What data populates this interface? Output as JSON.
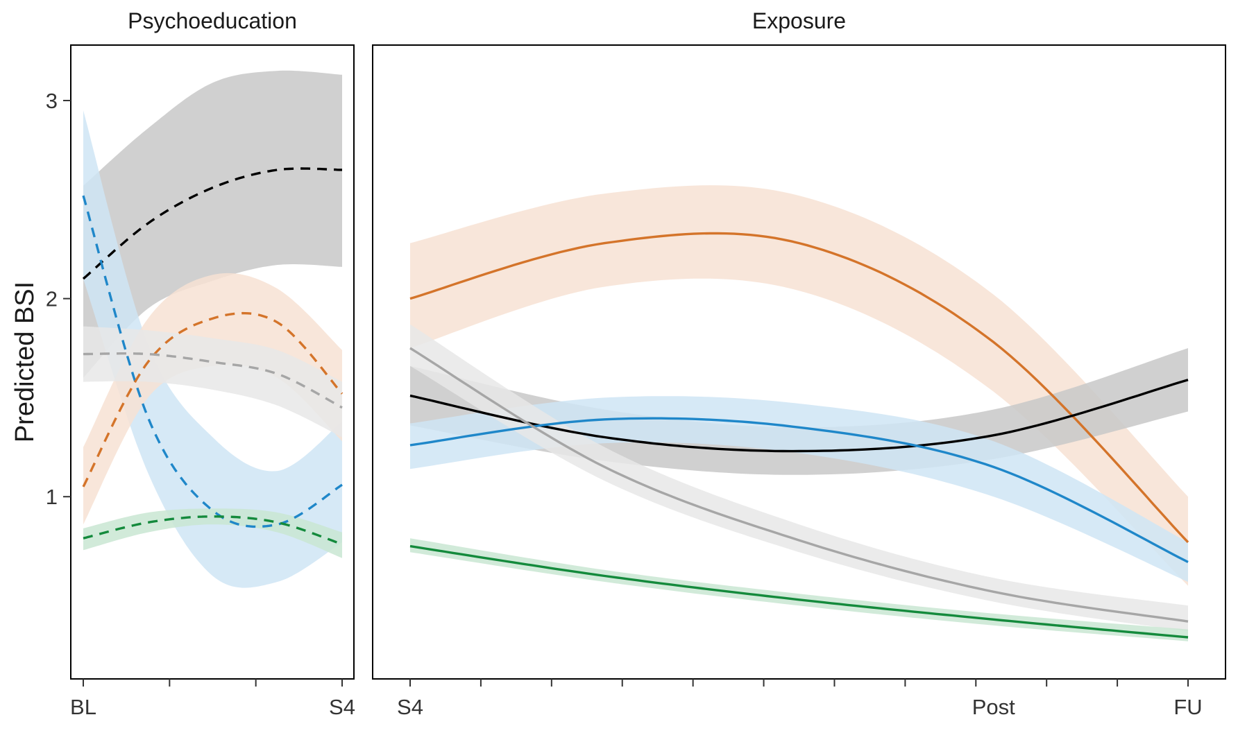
{
  "chart_data": {
    "type": "line",
    "ylabel": "Predicted BSI",
    "y_ticks": [
      1,
      2,
      3
    ],
    "ylim": [
      0.08,
      3.28
    ],
    "grid": false,
    "legend": "none",
    "panels": [
      {
        "title": "Psychoeducation",
        "line_style": "dashed",
        "x_ticks": [
          "BL",
          "S4"
        ],
        "x": [
          0,
          0.25,
          0.5,
          0.75,
          1
        ],
        "series": [
          {
            "color": "#000000",
            "fill": "#c8c8c8",
            "values": [
              2.1,
              2.38,
              2.56,
              2.65,
              2.65
            ],
            "lower": [
              1.6,
              1.95,
              2.09,
              2.17,
              2.16
            ],
            "upper": [
              2.57,
              2.86,
              3.09,
              3.15,
              3.13
            ]
          },
          {
            "color": "#1f87c9",
            "fill": "#cfe5f5",
            "values": [
              2.52,
              1.4,
              0.93,
              0.86,
              1.06
            ],
            "lower": [
              2.1,
              1.12,
              0.6,
              0.57,
              0.77
            ],
            "upper": [
              2.95,
              1.77,
              1.3,
              1.13,
              1.38
            ]
          },
          {
            "color": "#d4742a",
            "fill": "#f7e2d4",
            "values": [
              1.05,
              1.68,
              1.9,
              1.88,
              1.52
            ],
            "lower": [
              0.86,
              1.5,
              1.66,
              1.6,
              1.28
            ],
            "upper": [
              1.25,
              1.9,
              2.12,
              2.05,
              1.74
            ]
          },
          {
            "color": "#a6a6a6",
            "fill": "#e8e8e8",
            "values": [
              1.72,
              1.72,
              1.68,
              1.62,
              1.45
            ],
            "lower": [
              1.58,
              1.58,
              1.54,
              1.46,
              1.3
            ],
            "upper": [
              1.86,
              1.84,
              1.8,
              1.74,
              1.58
            ]
          },
          {
            "color": "#148a3c",
            "fill": "#c9e6d2",
            "values": [
              0.79,
              0.87,
              0.9,
              0.87,
              0.76
            ],
            "lower": [
              0.73,
              0.82,
              0.86,
              0.82,
              0.69
            ],
            "upper": [
              0.84,
              0.92,
              0.94,
              0.92,
              0.82
            ]
          }
        ]
      },
      {
        "title": "Exposure",
        "line_style": "solid",
        "x_ticks": [
          "S4",
          "Post",
          "FU"
        ],
        "x": [
          0,
          0.25,
          0.5,
          0.75,
          1
        ],
        "series": [
          {
            "color": "#d4742a",
            "fill": "#f7e2d4",
            "values": [
              2.0,
              2.28,
              2.28,
              1.78,
              0.77
            ],
            "lower": [
              1.75,
              2.06,
              2.04,
              1.53,
              0.55
            ],
            "upper": [
              2.28,
              2.53,
              2.52,
              2.02,
              1.0
            ]
          },
          {
            "color": "#000000",
            "fill": "#c8c8c8",
            "values": [
              1.51,
              1.3,
              1.23,
              1.31,
              1.59
            ],
            "lower": [
              1.36,
              1.18,
              1.11,
              1.19,
              1.43
            ],
            "upper": [
              1.66,
              1.44,
              1.35,
              1.44,
              1.75
            ]
          },
          {
            "color": "#1f87c9",
            "fill": "#cfe5f5",
            "values": [
              1.26,
              1.39,
              1.35,
              1.15,
              0.67
            ],
            "lower": [
              1.14,
              1.27,
              1.22,
              1.0,
              0.57
            ],
            "upper": [
              1.37,
              1.5,
              1.47,
              1.28,
              0.77
            ]
          },
          {
            "color": "#a6a6a6",
            "fill": "#e8e8e8",
            "values": [
              1.75,
              1.15,
              0.78,
              0.52,
              0.37
            ],
            "lower": [
              1.66,
              1.08,
              0.72,
              0.47,
              0.32
            ],
            "upper": [
              1.87,
              1.25,
              0.86,
              0.59,
              0.45
            ]
          },
          {
            "color": "#148a3c",
            "fill": "#c9e6d2",
            "values": [
              0.75,
              0.6,
              0.48,
              0.38,
              0.29
            ],
            "lower": [
              0.72,
              0.57,
              0.45,
              0.35,
              0.27
            ],
            "upper": [
              0.79,
              0.63,
              0.51,
              0.41,
              0.33
            ]
          }
        ]
      }
    ]
  }
}
